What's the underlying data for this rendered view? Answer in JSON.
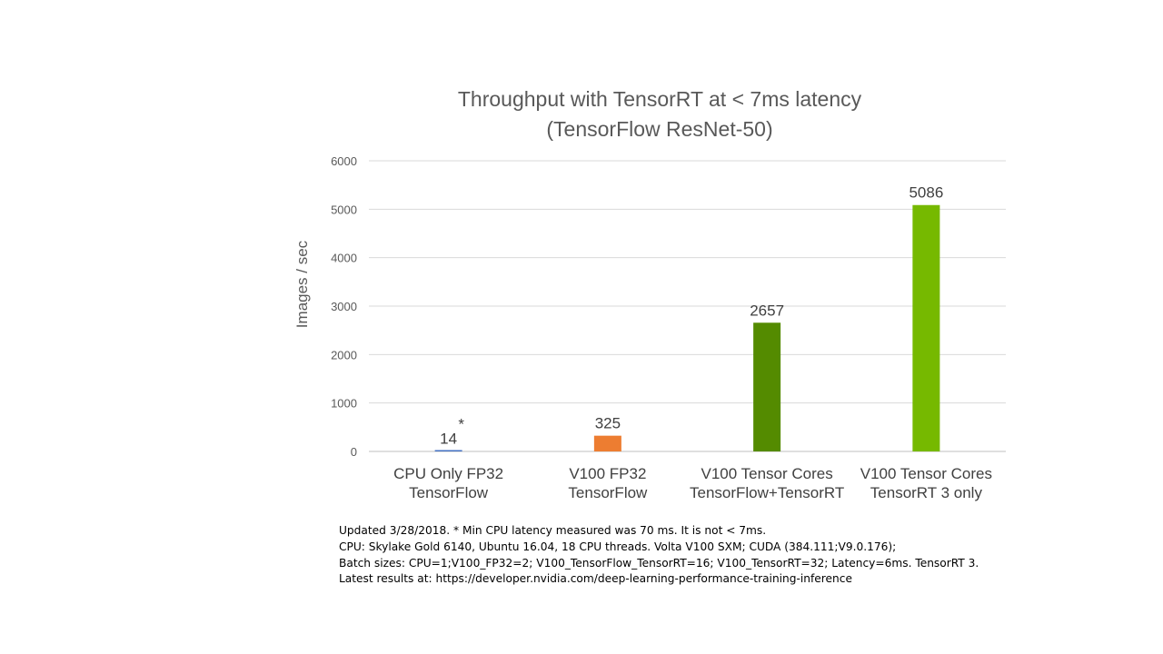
{
  "chart_data": {
    "type": "bar",
    "title_lines": [
      "Throughput with TensorRT at < 7ms latency",
      "(TensorFlow ResNet-50)"
    ],
    "ylabel": "Images / sec",
    "xlabel": "",
    "ylim": [
      0,
      6000
    ],
    "yticks": [
      "0",
      "1000",
      "2000",
      "3000",
      "4000",
      "5000",
      "6000"
    ],
    "grid": true,
    "categories": [
      {
        "lines": [
          "CPU Only FP32",
          "TensorFlow"
        ]
      },
      {
        "lines": [
          "V100 FP32",
          "TensorFlow"
        ]
      },
      {
        "lines": [
          "V100 Tensor Cores",
          "TensorFlow+TensorRT"
        ]
      },
      {
        "lines": [
          "V100 Tensor Cores",
          "TensorRT 3 only"
        ]
      }
    ],
    "values": [
      14,
      325,
      2657,
      5086
    ],
    "value_labels": [
      "14",
      "325",
      "2657",
      "5086"
    ],
    "annotations": [
      {
        "category_index": 0,
        "text": "*"
      }
    ],
    "colors": [
      "#4472c4",
      "#ed7d31",
      "#548b00",
      "#76b900"
    ]
  },
  "footnote": {
    "lines": [
      "Updated 3/28/2018. * Min CPU latency measured was 70 ms. It is not < 7ms.",
      "CPU: Skylake Gold 6140, Ubuntu 16.04, 18 CPU threads. Volta V100 SXM; CUDA (384.111;V9.0.176);",
      "Batch sizes: CPU=1;V100_FP32=2; V100_TensorFlow_TensorRT=16; V100_TensorRT=32; Latency=6ms. TensorRT 3.",
      "Latest results at: https://developer.nvidia.com/deep-learning-performance-training-inference"
    ]
  }
}
